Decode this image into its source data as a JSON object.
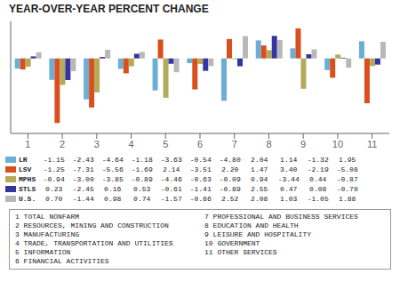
{
  "chart_data": {
    "type": "bar",
    "title": "YEAR-OVER-YEAR PERCENT CHANGE",
    "categories": [
      1,
      2,
      3,
      4,
      5,
      6,
      7,
      8,
      9,
      10,
      11
    ],
    "series": [
      {
        "name": "LR",
        "color": "#6baed6",
        "values": [
          -1.15,
          -2.43,
          -4.64,
          -1.18,
          -3.63,
          -0.54,
          -4.8,
          2.04,
          1.14,
          -1.32,
          1.95
        ],
        "value_labels": [
          "-1.15",
          "-2.43",
          "-4.64",
          "-1.18",
          "-3.63",
          "-0.54",
          "-4.80",
          "2.04",
          "1.14",
          "-1.32",
          "1.95"
        ]
      },
      {
        "name": "LSV",
        "color": "#d94f1e",
        "values": [
          -1.25,
          -7.31,
          -5.56,
          -1.69,
          2.14,
          -3.51,
          2.2,
          1.47,
          3.4,
          -2.19,
          -5.08
        ],
        "value_labels": [
          "-1.25",
          "-7.31",
          "-5.56",
          "-1.69",
          "2.14",
          "-3.51",
          "2.20",
          "1.47",
          "3.40",
          "-2.19",
          "-5.08"
        ]
      },
      {
        "name": "MPHS",
        "color": "#b5aa5a",
        "values": [
          -0.94,
          -3.0,
          -3.85,
          -0.89,
          -4.46,
          -0.63,
          -0.09,
          0.94,
          -3.44,
          0.44,
          -0.87
        ],
        "value_labels": [
          "-0.94",
          "-3.00",
          "-3.85",
          "-0.89",
          "-4.46",
          "-0.63",
          "-0.09",
          "0.94",
          "-3.44",
          "0.44",
          "-0.87"
        ]
      },
      {
        "name": "STLS",
        "color": "#3535a0",
        "values": [
          0.23,
          -2.45,
          0.16,
          0.53,
          -0.61,
          -1.41,
          -0.89,
          2.55,
          0.47,
          0.08,
          -0.7
        ],
        "value_labels": [
          "0.23",
          "-2.45",
          "0.16",
          "0.53",
          "-0.61",
          "-1.41",
          "-0.89",
          "2.55",
          "0.47",
          "0.08",
          "-0.70"
        ]
      },
      {
        "name": "U.S.",
        "color": "#b8b8b8",
        "values": [
          0.7,
          -1.44,
          0.98,
          0.74,
          -1.57,
          -0.86,
          2.52,
          2.08,
          1.03,
          -1.05,
          1.88
        ],
        "value_labels": [
          "0.70",
          "-1.44",
          "0.98",
          "0.74",
          "-1.57",
          "-0.86",
          "2.52",
          "2.08",
          "1.03",
          "-1.05",
          "1.88"
        ]
      }
    ],
    "ylim": [
      -8.5,
      4.2
    ],
    "tick_labels": "x",
    "annotations": [
      "1 TOTAL NONFARM",
      "2 RESOURCES, MINING AND CONSTRUCTION",
      "3 MANUFACTURING",
      "4 TRADE, TRANSPORTATION AND UTILITIES",
      "5 INFORMATION",
      "6 FINANCIAL ACTIVITIES",
      "7 PROFESSIONAL AND BUSINESS SERVICES",
      "8 EDUCATION AND HEALTH",
      "9 LEISURE AND HOSPITALITY",
      "10 GOVERNMENT",
      "11 OTHER SERVICES"
    ]
  }
}
